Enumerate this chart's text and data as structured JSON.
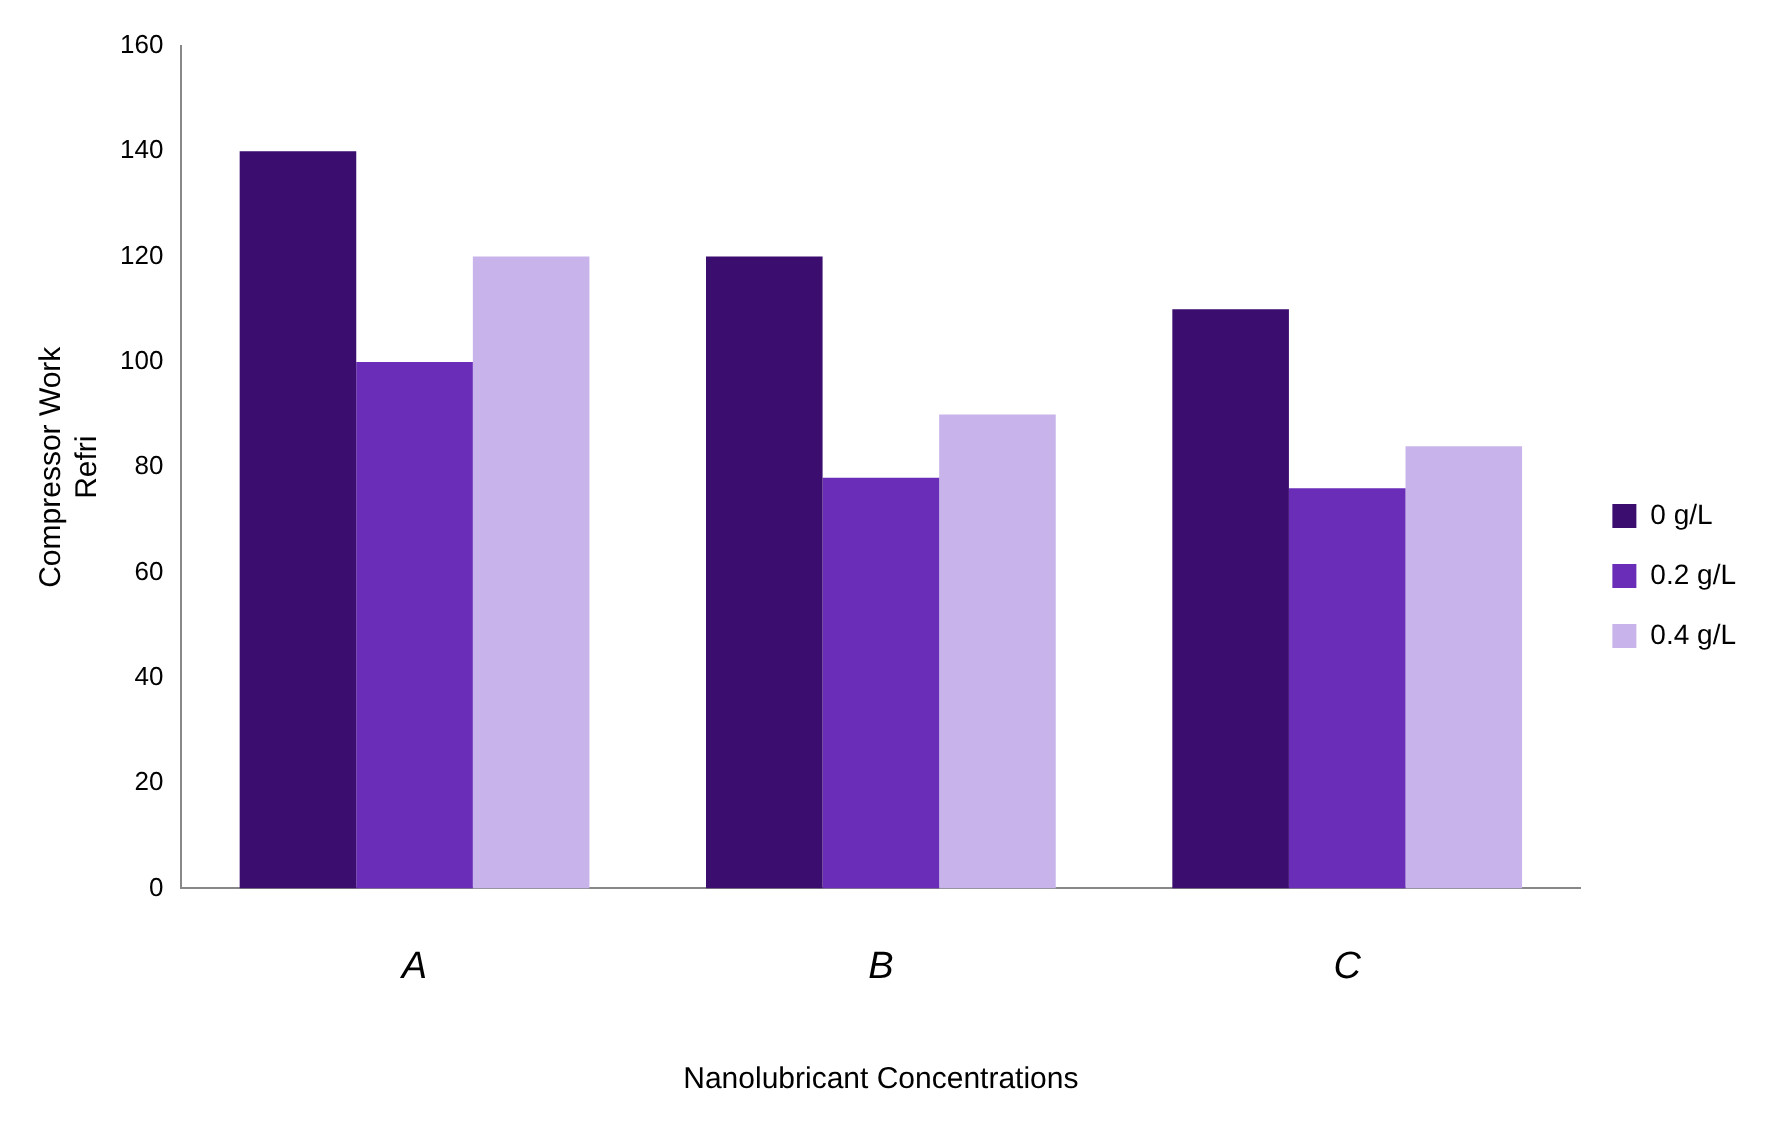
{
  "chart_data": {
    "type": "bar",
    "xlabel": "Nanolubricant Concentrations",
    "ylabel": "Compressor Work\nRefri",
    "categories": [
      "A",
      "B",
      "C"
    ],
    "series": [
      {
        "name": "0 g/L",
        "color": "#3a0d6e",
        "values": [
          140,
          120,
          110
        ]
      },
      {
        "name": "0.2 g/L",
        "color": "#6a2db8",
        "values": [
          100,
          78,
          76
        ]
      },
      {
        "name": "0.4 g/L",
        "color": "#c8b4ea",
        "values": [
          120,
          90,
          84
        ]
      }
    ],
    "ylim": [
      0,
      160
    ],
    "yticks": [
      0,
      20,
      40,
      60,
      80,
      100,
      120,
      140,
      160
    ],
    "grid": false,
    "legend": "right"
  }
}
